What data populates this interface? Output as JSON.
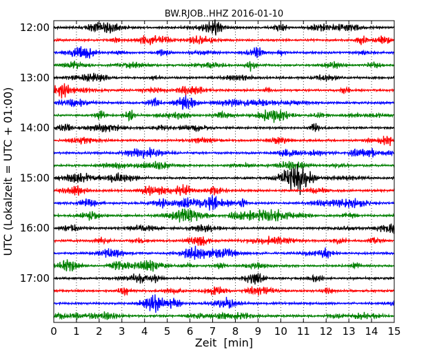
{
  "chart_data": {
    "type": "line",
    "title": "BW.RJOB..HHZ 2016-01-10",
    "xlabel": "Zeit  [min]",
    "ylabel": "UTC (Lokalzeit = UTC + 01:00)",
    "xlim": [
      0,
      15
    ],
    "x_ticks": [
      "0",
      "1",
      "2",
      "3",
      "4",
      "5",
      "6",
      "7",
      "8",
      "9",
      "10",
      "11",
      "12",
      "13",
      "14",
      "15"
    ],
    "y_ticks": [
      "12:00",
      "13:00",
      "14:00",
      "15:00",
      "16:00",
      "17:00"
    ],
    "grid": "vertical dotted at each minute",
    "trace_colors": [
      "#000000",
      "#ff0000",
      "#0000ff",
      "#008000"
    ],
    "trace_start_times": [
      "12:00",
      "12:15",
      "12:30",
      "12:45",
      "13:00",
      "13:15",
      "13:30",
      "13:45",
      "14:00",
      "14:15",
      "14:30",
      "14:45",
      "15:00",
      "15:15",
      "15:30",
      "15:45",
      "16:00",
      "16:15",
      "16:30",
      "16:45",
      "17:00",
      "17:15",
      "17:30",
      "17:45"
    ]
  }
}
